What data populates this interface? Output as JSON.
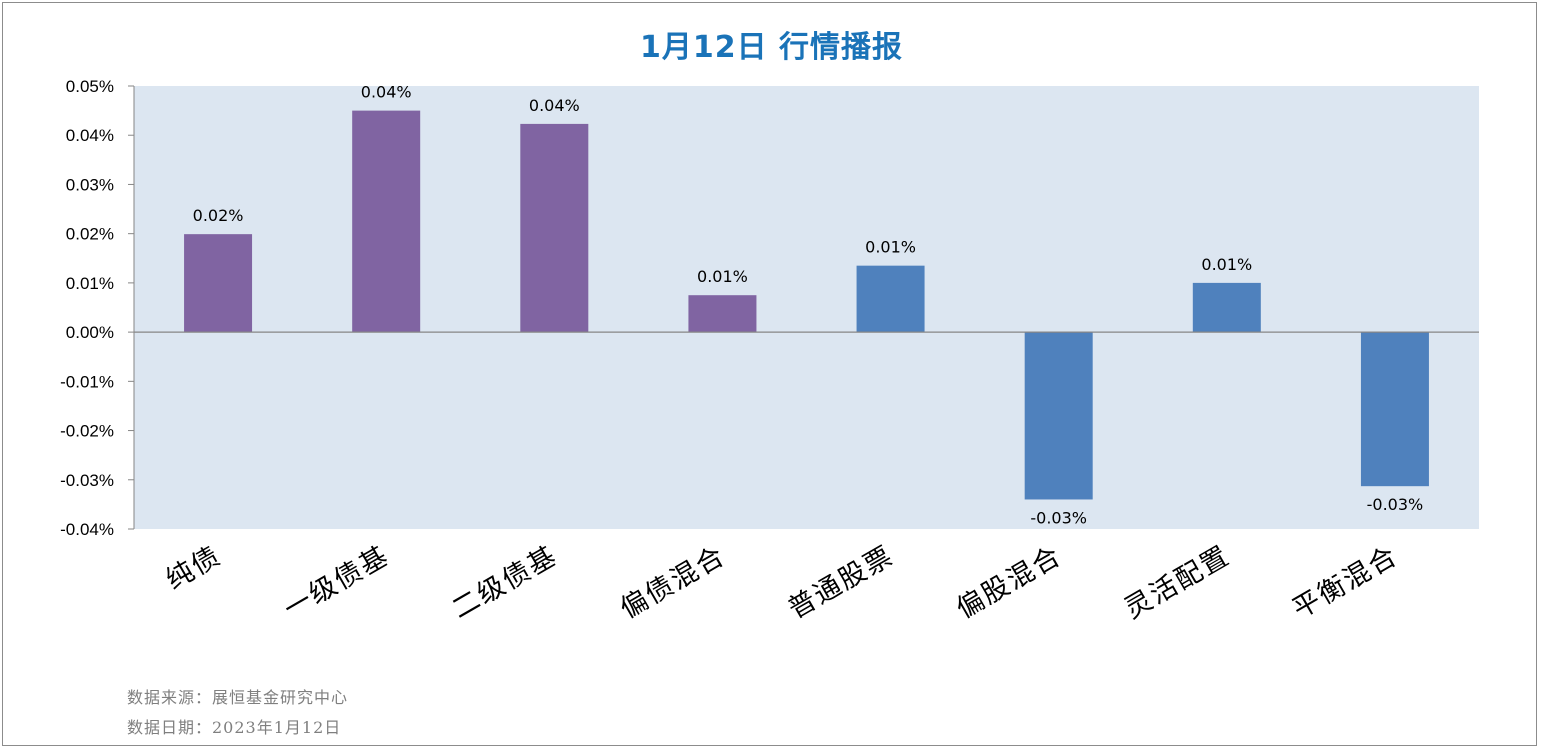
{
  "chart_data": {
    "type": "bar",
    "title": "1月12日 行情播报",
    "categories": [
      "纯债",
      "一级债基",
      "二级债基",
      "偏债混合",
      "普通股票",
      "偏股混合",
      "灵活配置",
      "平衡混合"
    ],
    "values": [
      0.0199,
      0.045,
      0.0423,
      0.0075,
      0.0135,
      -0.034,
      0.01,
      -0.0313
    ],
    "data_labels": [
      "0.02%",
      "0.04%",
      "0.04%",
      "0.01%",
      "0.01%",
      "-0.03%",
      "0.01%",
      "-0.03%"
    ],
    "bar_colors": [
      "#8064a2",
      "#8064a2",
      "#8064a2",
      "#8064a2",
      "#4f81bd",
      "#4f81bd",
      "#4f81bd",
      "#4f81bd"
    ],
    "ylim": [
      -0.04,
      0.05
    ],
    "yticks": [
      0.05,
      0.04,
      0.03,
      0.02,
      0.01,
      0.0,
      -0.01,
      -0.02,
      -0.03,
      -0.04
    ],
    "ytick_labels": [
      "0.05%",
      "0.04%",
      "0.03%",
      "0.02%",
      "0.01%",
      "0.00%",
      "-0.01%",
      "-0.02%",
      "-0.03%",
      "-0.04%"
    ],
    "plot_background": "#dce6f1",
    "legend": "none",
    "grid": false
  },
  "footer": {
    "source": "数据来源：展恒基金研究中心",
    "date": "数据日期：2023年1月12日"
  }
}
